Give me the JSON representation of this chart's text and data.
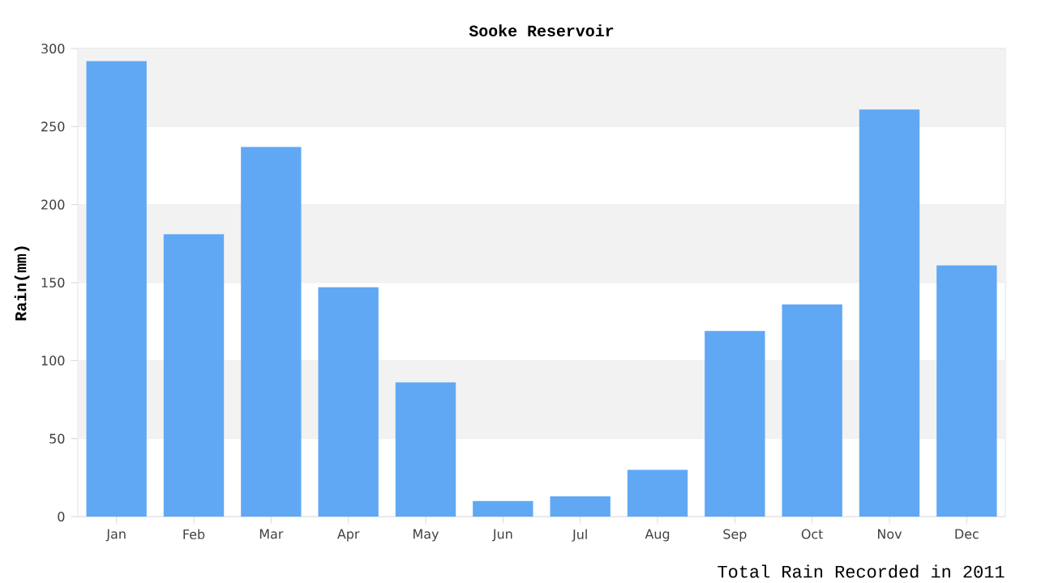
{
  "chart_data": {
    "type": "bar",
    "title": "Sooke Reservoir",
    "ylabel": "Rain(mm)",
    "annotations": [
      "Total Rain Recorded in 2011"
    ],
    "categories": [
      "Jan",
      "Feb",
      "Mar",
      "Apr",
      "May",
      "Jun",
      "Jul",
      "Aug",
      "Sep",
      "Oct",
      "Nov",
      "Dec"
    ],
    "values": [
      292,
      181,
      237,
      147,
      86,
      10,
      13,
      30,
      119,
      136,
      261,
      161
    ],
    "color": "#60a8f4",
    "ylim": [
      0,
      300
    ],
    "yticks": [
      0,
      50,
      100,
      150,
      200,
      250,
      300
    ],
    "grid": "y"
  }
}
